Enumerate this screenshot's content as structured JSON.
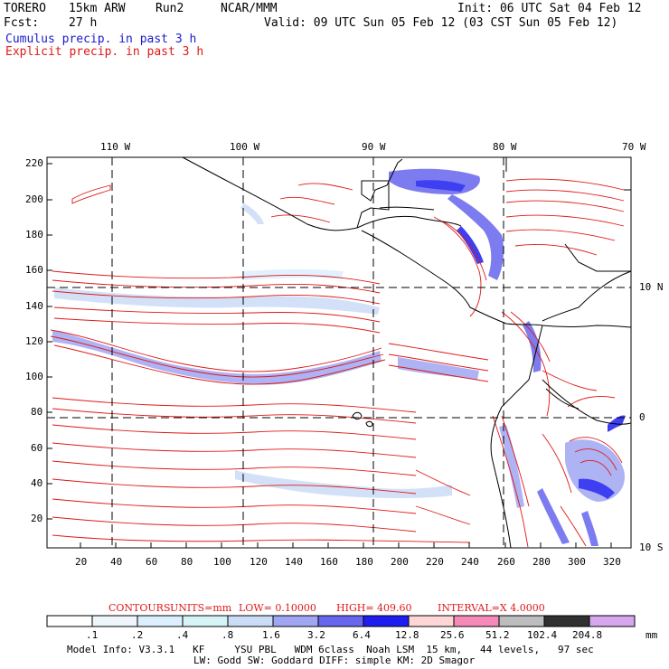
{
  "header": {
    "model": "TORERO",
    "resolution": "15km ARW",
    "run": "Run2",
    "org": "NCAR/MMM",
    "init": "Init: 06 UTC Sat 04 Feb 12",
    "fcst_label": "Fcst:",
    "fcst_value": "27 h",
    "valid": "Valid: 09 UTC Sun 05 Feb 12 (03 CST Sun 05 Feb 12)",
    "cumulus_label": "Cumulus precip. in past 3 h",
    "explicit_label": "Explicit precip. in past 3 h"
  },
  "map": {
    "lon_labels": [
      "110 W",
      "100 W",
      "90 W",
      "80 W",
      "70 W"
    ],
    "lat_labels": [
      "10 N",
      "0",
      "10 S"
    ],
    "y_ticks": [
      "220",
      "200",
      "180",
      "160",
      "140",
      "120",
      "100",
      "80",
      "60",
      "40",
      "20"
    ],
    "x_ticks": [
      "20",
      "40",
      "60",
      "80",
      "100",
      "120",
      "140",
      "160",
      "180",
      "200",
      "220",
      "240",
      "260",
      "280",
      "300",
      "320"
    ]
  },
  "contour_info": {
    "label": "CONTOURS:",
    "units": "UNITS=mm",
    "low": "LOW= 0.10000",
    "high": "HIGH= 409.60",
    "interval": "INTERVAL=X 4.0000"
  },
  "colorbar": {
    "labels": [
      ".1",
      ".2",
      ".4",
      ".8",
      "1.6",
      "3.2",
      "6.4",
      "12.8",
      "25.6",
      "51.2",
      "102.4",
      "204.8"
    ],
    "unit": "mm",
    "colors": [
      "#ffffff",
      "#eef6fb",
      "#dcefff",
      "#d6f4f6",
      "#cbdcf7",
      "#9fa6f2",
      "#6666ee",
      "#1e1ef0",
      "#ffd6d6",
      "#f58ab8",
      "#bdbdbd",
      "#303030",
      "#d6a6ee"
    ]
  },
  "footer": {
    "line1": "Model Info: V3.3.1   KF     YSU PBL   WDM 6class  Noah LSM  15 km,   44 levels,   97 sec",
    "line2": "LW: Godd SW: Goddard DIFF: simple KM: 2D Smagor"
  }
}
